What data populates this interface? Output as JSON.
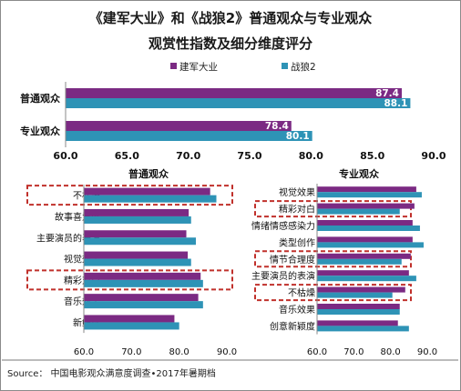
{
  "title_line1": "《建军大业》和《战狼2》普通观众与专业观众",
  "title_line2": "观赏性指数及细分维度评分",
  "legend": [
    "建军大业",
    "战狼2"
  ],
  "colors": {
    "series1": "#7b2a83",
    "series2": "#2e93b6",
    "highlight": "#c0302b"
  },
  "source": "Source： 中国电影观众满意度调查•2017年暑期档",
  "chart_data": [
    {
      "type": "bar",
      "orientation": "horizontal",
      "title": "",
      "categories": [
        "普通观众",
        "专业观众"
      ],
      "series": [
        {
          "name": "建军大业",
          "values": [
            87.4,
            78.4
          ]
        },
        {
          "name": "战狼2",
          "values": [
            88.1,
            80.1
          ]
        }
      ],
      "data_labels": [
        [
          "87.4",
          "78.4"
        ],
        [
          "88.1",
          "80.1"
        ]
      ],
      "xlim": [
        60,
        90
      ],
      "xticks": [
        "60.0",
        "65.0",
        "70.0",
        "75.0",
        "80.0",
        "85.0",
        "90.0"
      ],
      "legend_position": "top-right",
      "grid": false
    },
    {
      "type": "bar",
      "orientation": "horizontal",
      "title": "普通观众",
      "categories": [
        "不枯燥",
        "故事喜爱度",
        "主要演员的表演",
        "视觉效果",
        "精彩对白",
        "音乐效果",
        "新鲜感"
      ],
      "series": [
        {
          "name": "建军大业",
          "values": [
            86.5,
            82.0,
            81.5,
            81.8,
            84.5,
            84.0,
            79.0
          ]
        },
        {
          "name": "战狼2",
          "values": [
            87.8,
            82.5,
            83.5,
            82.5,
            85.0,
            85.0,
            80.0
          ]
        }
      ],
      "highlighted": [
        "不枯燥",
        "精彩对白"
      ],
      "xlim": [
        60,
        90
      ],
      "xticks": [
        "60.0",
        "70.0",
        "80.0",
        "90.0"
      ],
      "grid": false
    },
    {
      "type": "bar",
      "orientation": "horizontal",
      "title": "专业观众",
      "categories": [
        "视觉效果",
        "精彩对白",
        "情绪情感感染力",
        "类型创作",
        "情节合理度",
        "主要演员的表演",
        "不枯燥",
        "音乐效果",
        "创意新颖度"
      ],
      "series": [
        {
          "name": "建军大业",
          "values": [
            87.0,
            86.5,
            86.0,
            86.0,
            85.5,
            85.0,
            84.0,
            82.5,
            82.0
          ]
        },
        {
          "name": "战狼2",
          "values": [
            88.5,
            82.5,
            88.0,
            89.0,
            83.0,
            87.0,
            80.5,
            82.5,
            85.0
          ]
        }
      ],
      "highlighted": [
        "精彩对白",
        "情节合理度",
        "不枯燥"
      ],
      "xlim": [
        60,
        90
      ],
      "xticks": [
        "60.0",
        "70.0",
        "80.0",
        "90.0"
      ],
      "grid": false
    }
  ]
}
